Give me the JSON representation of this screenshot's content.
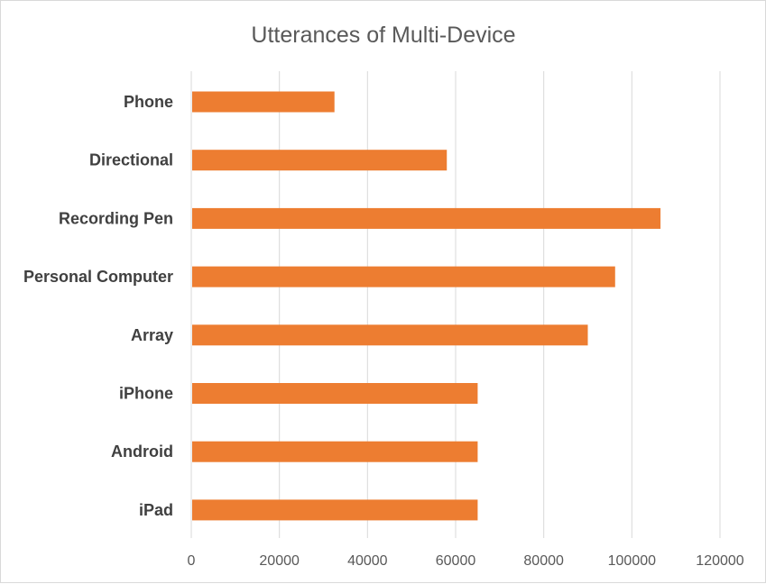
{
  "chart_data": {
    "type": "bar",
    "orientation": "horizontal",
    "title": "Utterances of Multi-Device",
    "categories": [
      "Phone",
      "Directional",
      "Recording Pen",
      "Personal Computer",
      "Array",
      "iPhone",
      "Android",
      "iPad"
    ],
    "values": [
      32500,
      58000,
      106500,
      96200,
      90000,
      65000,
      65000,
      65000
    ],
    "xlim": [
      0,
      120000
    ],
    "xticks": [
      0,
      20000,
      40000,
      60000,
      80000,
      100000,
      120000
    ],
    "xtick_labels": [
      "0",
      "20000",
      "40000",
      "60000",
      "80000",
      "100000",
      "120000"
    ],
    "xlabel": "",
    "ylabel": "",
    "grid": true,
    "bar_color": "#ED7D31",
    "grid_color": "#D9D9D9"
  }
}
